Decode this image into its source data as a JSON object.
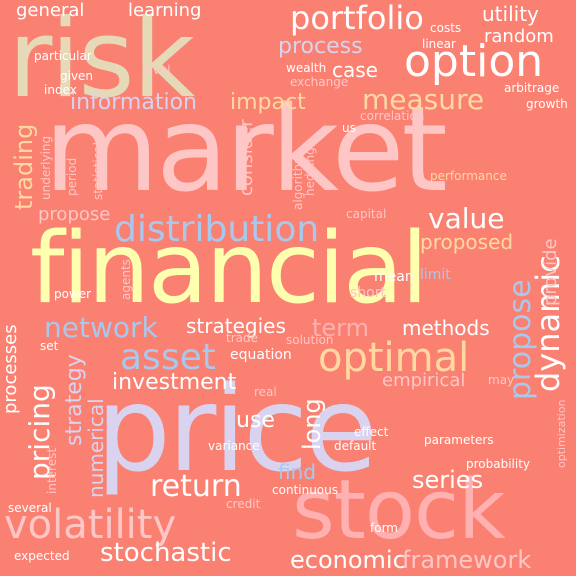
{
  "palette": {
    "background": "#fa8072",
    "cream": "#e6d9b8",
    "pale_pink": "#ffc6c6",
    "soft_pink": "#ffb0b0",
    "lavender": "#d9d3f0",
    "light_blue": "#a8c8ec",
    "yellow": "#ffffb0",
    "peach": "#ffd9a0",
    "white": "#ffffff"
  },
  "words": [
    {
      "text": "risk"
    },
    {
      "text": "market"
    },
    {
      "text": "financial"
    },
    {
      "text": "price"
    },
    {
      "text": "stock"
    },
    {
      "text": "option"
    },
    {
      "text": "portfolio"
    },
    {
      "text": "distribution"
    },
    {
      "text": "volatility"
    },
    {
      "text": "asset"
    },
    {
      "text": "optimal"
    },
    {
      "text": "network"
    },
    {
      "text": "return"
    },
    {
      "text": "process"
    },
    {
      "text": "information"
    },
    {
      "text": "measure"
    },
    {
      "text": "impact"
    },
    {
      "text": "case"
    },
    {
      "text": "random"
    },
    {
      "text": "utility"
    },
    {
      "text": "general"
    },
    {
      "text": "learning"
    },
    {
      "text": "trading"
    },
    {
      "text": "consider"
    },
    {
      "text": "value"
    },
    {
      "text": "proposed"
    },
    {
      "text": "propose"
    },
    {
      "text": "dynamic"
    },
    {
      "text": "rate"
    },
    {
      "text": "strategies"
    },
    {
      "text": "term"
    },
    {
      "text": "methods"
    },
    {
      "text": "pricing"
    },
    {
      "text": "strategy"
    },
    {
      "text": "investment"
    },
    {
      "text": "stochastic"
    },
    {
      "text": "economic"
    },
    {
      "text": "framework"
    },
    {
      "text": "series"
    },
    {
      "text": "numerical"
    },
    {
      "text": "processes"
    },
    {
      "text": "use"
    },
    {
      "text": "long"
    },
    {
      "text": "find"
    },
    {
      "text": "empirical"
    },
    {
      "text": "provide"
    },
    {
      "text": "equation"
    },
    {
      "text": "solution"
    },
    {
      "text": "mean"
    },
    {
      "text": "limit"
    },
    {
      "text": "short"
    },
    {
      "text": "performance"
    },
    {
      "text": "statistical"
    },
    {
      "text": "underlying"
    },
    {
      "text": "period"
    },
    {
      "text": "algorithm"
    },
    {
      "text": "hedging"
    },
    {
      "text": "correlation"
    },
    {
      "text": "exchange"
    },
    {
      "text": "wealth"
    },
    {
      "text": "costs"
    },
    {
      "text": "linear"
    },
    {
      "text": "arbitrage"
    },
    {
      "text": "growth"
    },
    {
      "text": "particular"
    },
    {
      "text": "given"
    },
    {
      "text": "index"
    },
    {
      "text": "level"
    },
    {
      "text": "us"
    },
    {
      "text": "capital"
    },
    {
      "text": "power"
    },
    {
      "text": "agents"
    },
    {
      "text": "trade"
    },
    {
      "text": "set"
    },
    {
      "text": "real"
    },
    {
      "text": "may"
    },
    {
      "text": "optimization"
    },
    {
      "text": "effect"
    },
    {
      "text": "parameters"
    },
    {
      "text": "probability"
    },
    {
      "text": "variance"
    },
    {
      "text": "default"
    },
    {
      "text": "continuous"
    },
    {
      "text": "credit"
    },
    {
      "text": "interest"
    },
    {
      "text": "several"
    },
    {
      "text": "expected"
    },
    {
      "text": "form"
    }
  ]
}
